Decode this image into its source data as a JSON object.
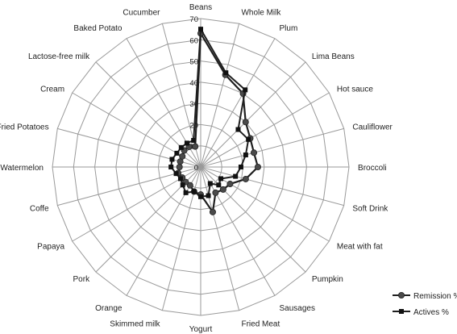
{
  "chart_data": {
    "type": "radar",
    "categories": [
      "Beans",
      "Whole Milk",
      "Plum",
      "Lima Beans",
      "Hot sauce",
      "Cauliflower",
      "Broccoli",
      "Soft Drink",
      "Meat with fat",
      "Pumpkin",
      "Sausages",
      "Fried Meat",
      "Yogurt",
      "Skimmed milk",
      "Orange",
      "Pork",
      "Papaya",
      "Coffe",
      "Watermelon",
      "Fried Potatoes",
      "Cream",
      "Lactose-free milk",
      "Baked Potato",
      "Cucumber"
    ],
    "series": [
      {
        "name": "Remission %",
        "marker": "circle",
        "values": [
          63,
          45,
          40,
          30,
          27,
          26,
          27,
          22,
          16,
          15,
          14,
          22,
          13,
          12,
          10,
          10,
          10,
          11,
          10,
          10,
          10,
          11,
          11,
          10
        ]
      },
      {
        "name": "Actives  %",
        "marker": "square",
        "values": [
          65,
          46,
          42,
          25,
          26,
          22,
          19,
          17,
          11,
          12,
          9,
          14,
          14,
          12,
          14,
          12,
          11,
          12,
          14,
          14,
          13,
          13,
          13,
          13
        ]
      }
    ],
    "rlim": [
      0,
      70
    ],
    "ticks": [
      0,
      10,
      20,
      30,
      40,
      50,
      60,
      70
    ],
    "grid": true,
    "legend_position": "bottom-right",
    "colors": {
      "series_line": "#1f1f1f",
      "remission_marker": "#4a4a4a",
      "actives_marker": "#111111",
      "grid": "#9a9a9a"
    }
  }
}
